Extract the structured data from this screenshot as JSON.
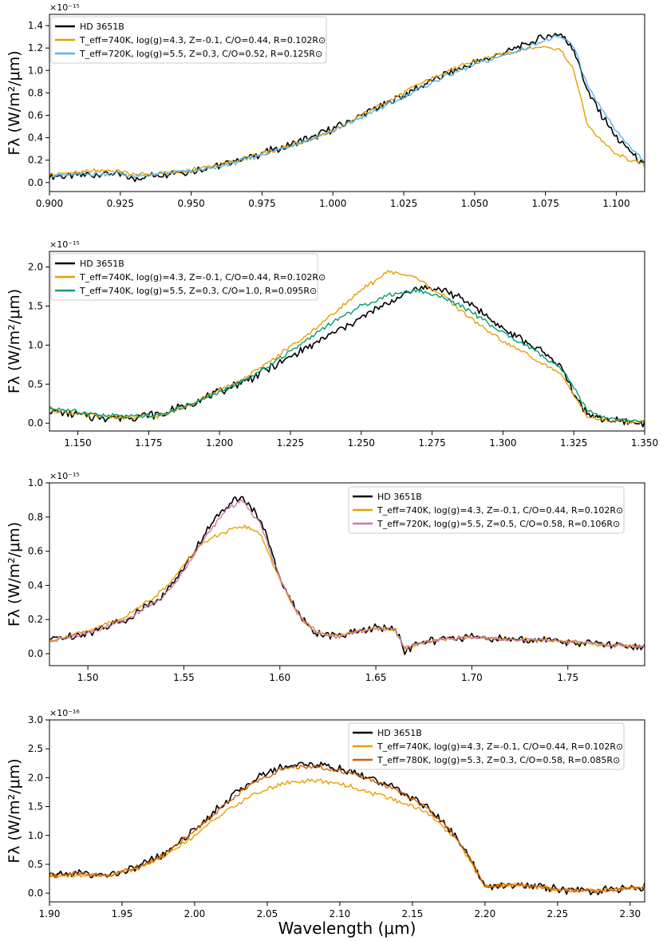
{
  "chart_data": [
    {
      "type": "line",
      "multiplier": "×10⁻¹⁵",
      "xlabel": "",
      "ylabel": "Fλ (W/m²/μm)",
      "xlim": [
        0.9,
        1.11
      ],
      "ylim": [
        -0.08,
        1.5
      ],
      "xticks": [
        0.9,
        0.925,
        0.95,
        0.975,
        1.0,
        1.025,
        1.05,
        1.075,
        1.1
      ],
      "xtick_labels": [
        "0.900",
        "0.925",
        "0.950",
        "0.975",
        "1.000",
        "1.025",
        "1.050",
        "1.075",
        "1.100"
      ],
      "yticks": [
        0.0,
        0.2,
        0.4,
        0.6,
        0.8,
        1.0,
        1.2,
        1.4
      ],
      "ytick_labels": [
        "0.0",
        "0.2",
        "0.4",
        "0.6",
        "0.8",
        "1.0",
        "1.2",
        "1.4"
      ],
      "legend_position": "upper-left",
      "series": [
        {
          "name": "HD 3651B",
          "legend_label": "HD 3651B",
          "color": "#000000",
          "x": [
            0.9,
            0.91,
            0.92,
            0.925,
            0.93,
            0.94,
            0.95,
            0.96,
            0.97,
            0.98,
            0.99,
            1.0,
            1.01,
            1.02,
            1.03,
            1.04,
            1.05,
            1.06,
            1.07,
            1.075,
            1.08,
            1.085,
            1.09,
            1.1,
            1.11
          ],
          "y": [
            0.05,
            0.06,
            0.08,
            0.07,
            0.03,
            0.08,
            0.1,
            0.15,
            0.22,
            0.3,
            0.38,
            0.48,
            0.6,
            0.72,
            0.85,
            0.97,
            1.07,
            1.15,
            1.25,
            1.3,
            1.33,
            1.2,
            0.8,
            0.4,
            0.15
          ]
        },
        {
          "name": "Teff=740K, log(g)=4.3, Z=-0.1, C/O=0.44, R=0.102R⊙",
          "legend_label": "T_eff=740K, log(g)=4.3, Z=-0.1, C/O=0.44, R=0.102R⊙",
          "color": "#E69F00",
          "x": [
            0.9,
            0.91,
            0.92,
            0.925,
            0.93,
            0.94,
            0.95,
            0.96,
            0.97,
            0.98,
            0.99,
            1.0,
            1.01,
            1.02,
            1.03,
            1.04,
            1.05,
            1.06,
            1.07,
            1.075,
            1.08,
            1.085,
            1.09,
            1.1,
            1.11
          ],
          "y": [
            0.07,
            0.09,
            0.11,
            0.1,
            0.07,
            0.08,
            0.11,
            0.16,
            0.22,
            0.29,
            0.37,
            0.46,
            0.6,
            0.73,
            0.87,
            0.99,
            1.08,
            1.15,
            1.2,
            1.21,
            1.2,
            1.0,
            0.5,
            0.25,
            0.15
          ]
        },
        {
          "name": "Teff=720K, log(g)=5.5, Z=0.3, C/O=0.52, R=0.125R⊙",
          "legend_label": "T_eff=720K, log(g)=5.5, Z=0.3, C/O=0.52, R=0.125R⊙",
          "color": "#56B4E9",
          "x": [
            0.9,
            0.91,
            0.92,
            0.925,
            0.93,
            0.94,
            0.95,
            0.96,
            0.97,
            0.98,
            0.99,
            1.0,
            1.01,
            1.02,
            1.03,
            1.04,
            1.05,
            1.06,
            1.07,
            1.075,
            1.08,
            1.085,
            1.09,
            1.1,
            1.11
          ],
          "y": [
            0.06,
            0.07,
            0.08,
            0.08,
            0.05,
            0.08,
            0.1,
            0.14,
            0.21,
            0.29,
            0.37,
            0.46,
            0.58,
            0.7,
            0.83,
            0.95,
            1.05,
            1.13,
            1.22,
            1.27,
            1.3,
            1.22,
            0.85,
            0.45,
            0.18
          ]
        }
      ]
    },
    {
      "type": "line",
      "multiplier": "×10⁻¹⁵",
      "xlabel": "",
      "ylabel": "Fλ (W/m²/μm)",
      "xlim": [
        1.14,
        1.35
      ],
      "ylim": [
        -0.1,
        2.2
      ],
      "xticks": [
        1.15,
        1.175,
        1.2,
        1.225,
        1.25,
        1.275,
        1.3,
        1.325,
        1.35
      ],
      "xtick_labels": [
        "1.150",
        "1.175",
        "1.200",
        "1.225",
        "1.250",
        "1.275",
        "1.300",
        "1.325",
        "1.350"
      ],
      "yticks": [
        0.0,
        0.5,
        1.0,
        1.5,
        2.0
      ],
      "ytick_labels": [
        "0.0",
        "0.5",
        "1.0",
        "1.5",
        "2.0"
      ],
      "legend_position": "upper-left",
      "series": [
        {
          "name": "HD 3651B",
          "legend_label": "HD 3651B",
          "color": "#000000",
          "x": [
            1.14,
            1.15,
            1.16,
            1.17,
            1.18,
            1.19,
            1.2,
            1.21,
            1.22,
            1.23,
            1.24,
            1.25,
            1.26,
            1.27,
            1.28,
            1.29,
            1.3,
            1.31,
            1.32,
            1.325,
            1.33,
            1.34,
            1.35
          ],
          "y": [
            0.15,
            0.1,
            0.07,
            0.08,
            0.12,
            0.25,
            0.4,
            0.55,
            0.75,
            0.95,
            1.15,
            1.35,
            1.55,
            1.75,
            1.7,
            1.5,
            1.2,
            1.0,
            0.75,
            0.4,
            0.1,
            0.02,
            0.0
          ]
        },
        {
          "name": "Teff=740K, log(g)=4.3, Z=-0.1, C/O=0.44, R=0.102R⊙",
          "legend_label": "T_eff=740K, log(g)=4.3, Z=-0.1, C/O=0.44, R=0.102R⊙",
          "color": "#E69F00",
          "x": [
            1.14,
            1.15,
            1.16,
            1.17,
            1.18,
            1.19,
            1.2,
            1.21,
            1.22,
            1.23,
            1.24,
            1.25,
            1.26,
            1.27,
            1.28,
            1.29,
            1.3,
            1.31,
            1.32,
            1.325,
            1.33,
            1.34,
            1.35
          ],
          "y": [
            0.18,
            0.12,
            0.08,
            0.07,
            0.1,
            0.25,
            0.42,
            0.6,
            0.85,
            1.1,
            1.4,
            1.7,
            1.95,
            1.85,
            1.6,
            1.3,
            1.05,
            0.85,
            0.65,
            0.35,
            0.08,
            0.02,
            0.01
          ]
        },
        {
          "name": "Teff=740K, log(g)=5.5, Z=0.3, C/O=1.0, R=0.095R⊙",
          "legend_label": "T_eff=740K, log(g)=5.5, Z=0.3, C/O=1.0, R=0.095R⊙",
          "color": "#009E73",
          "x": [
            1.14,
            1.15,
            1.16,
            1.17,
            1.18,
            1.19,
            1.2,
            1.21,
            1.22,
            1.23,
            1.24,
            1.25,
            1.26,
            1.27,
            1.28,
            1.29,
            1.3,
            1.31,
            1.32,
            1.325,
            1.33,
            1.34,
            1.35
          ],
          "y": [
            0.2,
            0.14,
            0.1,
            0.08,
            0.11,
            0.24,
            0.4,
            0.56,
            0.8,
            1.05,
            1.3,
            1.5,
            1.65,
            1.7,
            1.6,
            1.4,
            1.15,
            0.95,
            0.72,
            0.45,
            0.15,
            0.04,
            0.02
          ]
        }
      ]
    },
    {
      "type": "line",
      "multiplier": "×10⁻¹⁵",
      "xlabel": "",
      "ylabel": "Fλ (W/m²/μm)",
      "xlim": [
        1.48,
        1.79
      ],
      "ylim": [
        -0.07,
        1.0
      ],
      "xticks": [
        1.5,
        1.55,
        1.6,
        1.65,
        1.7,
        1.75
      ],
      "xtick_labels": [
        "1.50",
        "1.55",
        "1.60",
        "1.65",
        "1.70",
        "1.75"
      ],
      "yticks": [
        0.0,
        0.2,
        0.4,
        0.6,
        0.8,
        1.0
      ],
      "ytick_labels": [
        "0.0",
        "0.2",
        "0.4",
        "0.6",
        "0.8",
        "1.0"
      ],
      "legend_position": "upper-right",
      "series": [
        {
          "name": "HD 3651B",
          "legend_label": "HD 3651B",
          "color": "#000000",
          "x": [
            1.48,
            1.5,
            1.52,
            1.54,
            1.55,
            1.56,
            1.57,
            1.58,
            1.59,
            1.6,
            1.61,
            1.62,
            1.63,
            1.64,
            1.65,
            1.66,
            1.665,
            1.67,
            1.68,
            1.7,
            1.72,
            1.74,
            1.76,
            1.79
          ],
          "y": [
            0.08,
            0.12,
            0.2,
            0.35,
            0.5,
            0.68,
            0.85,
            0.92,
            0.78,
            0.45,
            0.22,
            0.12,
            0.1,
            0.13,
            0.15,
            0.15,
            0.02,
            0.05,
            0.08,
            0.1,
            0.08,
            0.08,
            0.06,
            0.04
          ]
        },
        {
          "name": "Teff=740K, log(g)=4.3, Z=-0.1, C/O=0.44, R=0.102R⊙",
          "legend_label": "T_eff=740K, log(g)=4.3, Z=-0.1, C/O=0.44, R=0.102R⊙",
          "color": "#E69F00",
          "x": [
            1.48,
            1.5,
            1.52,
            1.54,
            1.55,
            1.56,
            1.57,
            1.58,
            1.59,
            1.6,
            1.61,
            1.62,
            1.63,
            1.64,
            1.65,
            1.66,
            1.665,
            1.67,
            1.68,
            1.7,
            1.72,
            1.74,
            1.76,
            1.79
          ],
          "y": [
            0.08,
            0.13,
            0.22,
            0.38,
            0.52,
            0.65,
            0.7,
            0.75,
            0.7,
            0.43,
            0.22,
            0.12,
            0.1,
            0.13,
            0.15,
            0.14,
            0.03,
            0.05,
            0.08,
            0.1,
            0.08,
            0.08,
            0.06,
            0.04
          ]
        },
        {
          "name": "Teff=720K, log(g)=5.5, Z=0.5, C/O=0.58, R=0.106R⊙",
          "legend_label": "T_eff=720K, log(g)=5.5, Z=0.5, C/O=0.58, R=0.106R⊙",
          "color": "#CC79A7",
          "x": [
            1.48,
            1.5,
            1.52,
            1.54,
            1.55,
            1.56,
            1.57,
            1.58,
            1.59,
            1.6,
            1.61,
            1.62,
            1.63,
            1.64,
            1.65,
            1.66,
            1.665,
            1.67,
            1.68,
            1.7,
            1.72,
            1.74,
            1.76,
            1.79
          ],
          "y": [
            0.07,
            0.12,
            0.2,
            0.34,
            0.48,
            0.66,
            0.82,
            0.9,
            0.76,
            0.44,
            0.22,
            0.12,
            0.1,
            0.13,
            0.15,
            0.14,
            0.03,
            0.05,
            0.08,
            0.1,
            0.08,
            0.08,
            0.06,
            0.04
          ]
        }
      ]
    },
    {
      "type": "line",
      "multiplier": "×10⁻¹⁶",
      "xlabel": "Wavelength (μm)",
      "ylabel": "Fλ (W/m²/μm)",
      "xlim": [
        1.9,
        2.31
      ],
      "ylim": [
        -0.15,
        3.0
      ],
      "xticks": [
        1.9,
        1.95,
        2.0,
        2.05,
        2.1,
        2.15,
        2.2,
        2.25,
        2.3
      ],
      "xtick_labels": [
        "1.90",
        "1.95",
        "2.00",
        "2.05",
        "2.10",
        "2.15",
        "2.20",
        "2.25",
        "2.30"
      ],
      "yticks": [
        0.0,
        0.5,
        1.0,
        1.5,
        2.0,
        2.5,
        3.0
      ],
      "ytick_labels": [
        "0.0",
        "0.5",
        "1.0",
        "1.5",
        "2.0",
        "2.5",
        "3.0"
      ],
      "legend_position": "upper-right",
      "series": [
        {
          "name": "HD 3651B",
          "legend_label": "HD 3651B",
          "color": "#000000",
          "x": [
            1.9,
            1.92,
            1.94,
            1.96,
            1.98,
            2.0,
            2.02,
            2.04,
            2.06,
            2.08,
            2.1,
            2.12,
            2.14,
            2.16,
            2.18,
            2.19,
            2.2,
            2.22,
            2.24,
            2.26,
            2.28,
            2.31
          ],
          "y": [
            0.3,
            0.35,
            0.3,
            0.45,
            0.7,
            1.1,
            1.55,
            1.95,
            2.2,
            2.25,
            2.15,
            2.0,
            1.8,
            1.5,
            1.0,
            0.6,
            0.1,
            0.15,
            0.1,
            0.05,
            0.05,
            0.1
          ]
        },
        {
          "name": "Teff=740K, log(g)=4.3, Z=-0.1, C/O=0.44, R=0.102R⊙",
          "legend_label": "T_eff=740K, log(g)=4.3, Z=-0.1, C/O=0.44, R=0.102R⊙",
          "color": "#E69F00",
          "x": [
            1.9,
            1.92,
            1.94,
            1.96,
            1.98,
            2.0,
            2.02,
            2.04,
            2.06,
            2.08,
            2.1,
            2.12,
            2.14,
            2.16,
            2.18,
            2.19,
            2.2,
            2.22,
            2.24,
            2.26,
            2.28,
            2.31
          ],
          "y": [
            0.3,
            0.32,
            0.3,
            0.42,
            0.65,
            1.0,
            1.4,
            1.7,
            1.9,
            1.95,
            1.9,
            1.75,
            1.6,
            1.4,
            0.95,
            0.55,
            0.12,
            0.15,
            0.1,
            0.05,
            0.05,
            0.1
          ]
        },
        {
          "name": "Teff=780K, log(g)=5.3, Z=0.3, C/O=0.58, R=0.085R⊙",
          "legend_label": "T_eff=780K, log(g)=5.3, Z=0.3, C/O=0.58, R=0.085R⊙",
          "color": "#D55E00",
          "x": [
            1.9,
            1.92,
            1.94,
            1.96,
            1.98,
            2.0,
            2.02,
            2.04,
            2.06,
            2.08,
            2.1,
            2.12,
            2.14,
            2.16,
            2.18,
            2.19,
            2.2,
            2.22,
            2.24,
            2.26,
            2.28,
            2.31
          ],
          "y": [
            0.3,
            0.34,
            0.3,
            0.44,
            0.68,
            1.08,
            1.52,
            1.9,
            2.15,
            2.2,
            2.12,
            1.98,
            1.78,
            1.48,
            0.98,
            0.58,
            0.11,
            0.15,
            0.1,
            0.05,
            0.05,
            0.1
          ]
        }
      ]
    }
  ]
}
